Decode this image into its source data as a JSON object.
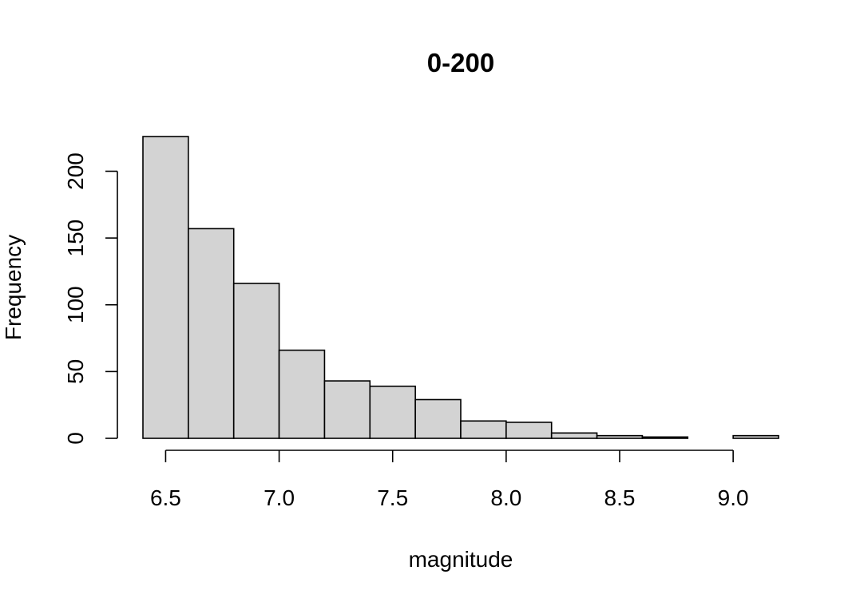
{
  "chart_data": {
    "type": "bar",
    "title": "0-200",
    "xlabel": "magnitude",
    "ylabel": "Frequency",
    "bin_edges": [
      6.4,
      6.6,
      6.8,
      7.0,
      7.2,
      7.4,
      7.6,
      7.8,
      8.0,
      8.2,
      8.4,
      8.6,
      8.8,
      9.0,
      9.2
    ],
    "values": [
      226,
      157,
      116,
      66,
      43,
      39,
      29,
      13,
      12,
      4,
      2,
      1,
      0,
      2
    ],
    "xticks": [
      6.5,
      7.0,
      7.5,
      8.0,
      8.5,
      9.0
    ],
    "xtick_labels": [
      "6.5",
      "7.0",
      "7.5",
      "8.0",
      "8.5",
      "9.0"
    ],
    "yticks": [
      0,
      50,
      100,
      150,
      200
    ],
    "ytick_labels": [
      "0",
      "50",
      "100",
      "150",
      "200"
    ],
    "xlim": [
      6.4,
      9.2
    ],
    "ylim": [
      0,
      226
    ],
    "bar_color": "#d3d3d3",
    "grid": false,
    "legend": "none"
  }
}
